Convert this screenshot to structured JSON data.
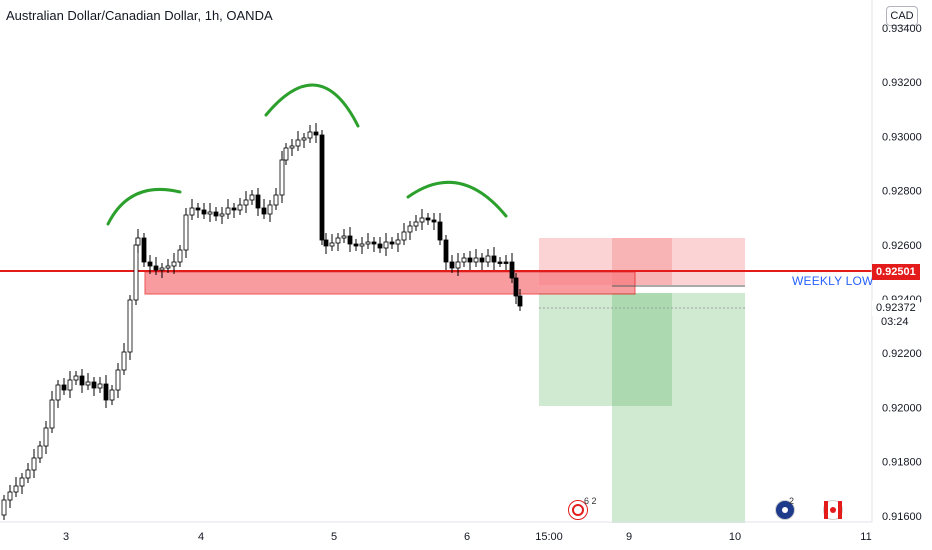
{
  "header": {
    "title": "Australian Dollar/Canadian Dollar, 1h, OANDA"
  },
  "currency_button": {
    "label": "CAD"
  },
  "price_axis": {
    "ticks": [
      "0.93400",
      "0.93200",
      "0.93000",
      "0.92800",
      "0.92600",
      "0.92400",
      "0.92200",
      "0.92000",
      "0.91800",
      "0.91600"
    ],
    "current_price_tag": "0.92501",
    "last_price_tag": "0.92372",
    "countdown": "03:24"
  },
  "time_axis": {
    "labels": [
      "3",
      "4",
      "5",
      "6",
      "15:00",
      "9",
      "10",
      "11"
    ]
  },
  "annotations": {
    "weekly_low_label": "WEEKLY LOW",
    "weekly_low_price": 0.92501
  },
  "events": [
    {
      "icon": "economic-event-icon",
      "count": "6 2"
    },
    {
      "icon": "australia-flag-icon",
      "count": "2"
    },
    {
      "icon": "canada-flag-icon",
      "count": ""
    }
  ],
  "colors": {
    "bull": "#ffffff",
    "bear": "#000000",
    "level_line": "#e31b1b",
    "zone_fill": "#f77c80",
    "stop_zone": "#fccbcd",
    "target_zone": "#c8e6c9",
    "arc": "#2ca02c"
  },
  "chart_data": {
    "type": "candlestick",
    "symbol": "AUDCAD",
    "timeframe": "1h",
    "ylim": [
      0.9158,
      0.9342
    ],
    "horizontal_level": 0.92501,
    "demand_zone": [
      0.92425,
      0.92505
    ],
    "position": {
      "entry": 0.92445,
      "stop": 0.9263,
      "target_1": 0.92015,
      "target_2": 0.9158
    }
  }
}
